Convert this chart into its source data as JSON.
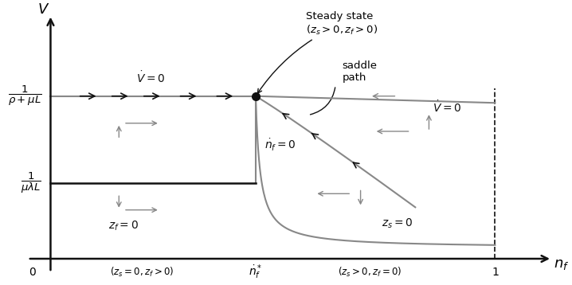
{
  "xlim": [
    -0.08,
    1.13
  ],
  "ylim": [
    -0.08,
    0.92
  ],
  "nf_star": 0.45,
  "V_upper": 0.6,
  "V_lower": 0.28,
  "color_gray": "#888888",
  "color_black": "#111111",
  "background": "#ffffff"
}
